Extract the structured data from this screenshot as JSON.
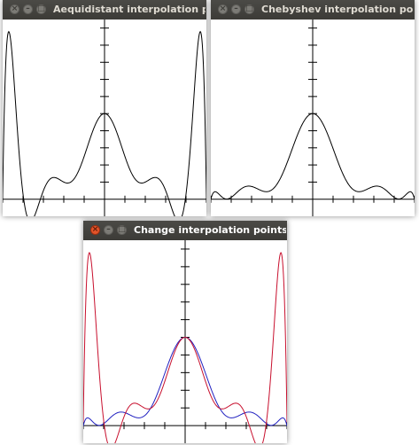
{
  "windows": [
    {
      "title": "Aequidistant interpolation points",
      "active": false
    },
    {
      "title": "Chebyshev interpolation points",
      "active": false
    },
    {
      "title": "Change interpolation points",
      "active": true
    }
  ],
  "colors": {
    "titlebar": "#3c3b37",
    "title_text": "#dfdbd2",
    "curve_black": "#000000",
    "curve_red": "#c8102e",
    "curve_blue": "#2020c0",
    "close_active": "#e2542a"
  },
  "icons": [
    "close-icon",
    "minimize-icon",
    "maximize-icon"
  ],
  "chart_data": [
    {
      "type": "line",
      "title": "",
      "function": "1/(1+25x^2)",
      "interpolation": "equidistant",
      "xlim": [
        -1,
        1
      ],
      "ylim": [
        -0.2,
        2.1
      ],
      "series": [
        {
          "values": "polynomial interpolant, 11 equidistant nodes"
        }
      ]
    },
    {
      "type": "line",
      "title": "",
      "function": "1/(1+25x^2)",
      "interpolation": "chebyshev",
      "xlim": [
        -1,
        1
      ],
      "ylim": [
        -0.2,
        2.1
      ],
      "series": [
        {
          "values": "polynomial interpolant, 11 Chebyshev nodes"
        }
      ]
    },
    {
      "type": "line",
      "title": "",
      "function": "1/(1+25x^2)",
      "xlim": [
        -1,
        1
      ],
      "ylim": [
        -0.2,
        2.1
      ],
      "series": [
        {
          "values": "equidistant interpolant"
        },
        {
          "values": "chebyshev interpolant"
        }
      ]
    }
  ]
}
